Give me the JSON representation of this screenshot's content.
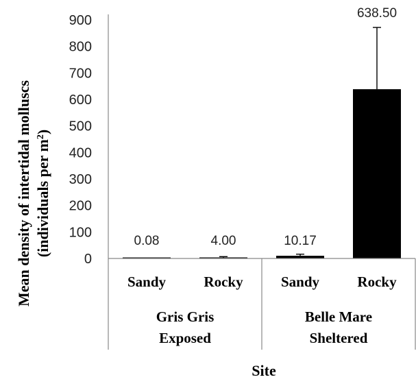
{
  "chart_data": {
    "type": "bar",
    "categories": [
      "Sandy",
      "Rocky",
      "Sandy",
      "Rocky"
    ],
    "groups": [
      {
        "line1": "Gris Gris",
        "line2": "Exposed"
      },
      {
        "line1": "Belle Mare",
        "line2": "Sheltered"
      }
    ],
    "values": [
      0.08,
      4.0,
      10.17,
      638.5
    ],
    "data_labels": [
      "0.08",
      "4.00",
      "10.17",
      "638.50"
    ],
    "error_bars": [
      0,
      3,
      6,
      233
    ],
    "ylim": [
      0,
      900
    ],
    "yticks": [
      "0",
      "100",
      "200",
      "300",
      "400",
      "500",
      "600",
      "700",
      "800",
      "900"
    ],
    "ylabel_line1": "Mean density of intertidal molluscs",
    "ylabel_line2_prefix": "(individuals per m",
    "ylabel_line2_sup": "2",
    "ylabel_line2_suffix": ")",
    "xlabel": "Site",
    "bar_color": "#000000",
    "grid": false
  }
}
